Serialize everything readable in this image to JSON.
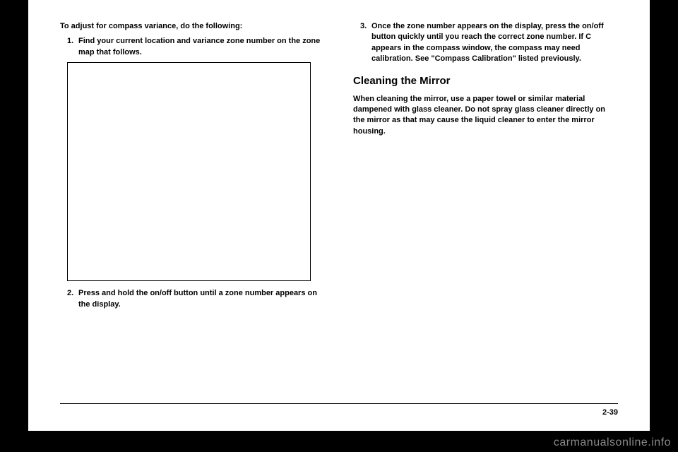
{
  "left": {
    "intro": "To adjust for compass variance, do the following:",
    "step1_num": "1.",
    "step1_text": "Find your current location and variance zone number on the zone map that follows.",
    "step2_num": "2.",
    "step2_text": "Press and hold the on/off button until a zone number appears on the display."
  },
  "right": {
    "step3_num": "3.",
    "step3_text": "Once the zone number appears on the display, press the on/off button quickly until you reach the correct zone number. If C appears in the compass window, the compass may need calibration. See \"Compass Calibration\" listed previously.",
    "heading": "Cleaning the Mirror",
    "para": "When cleaning the mirror, use a paper towel or similar material dampened with glass cleaner. Do not spray glass cleaner directly on the mirror as that may cause the liquid cleaner to enter the mirror housing."
  },
  "footer": {
    "pagenum": "2-39"
  },
  "watermark": "carmanualsonline.info"
}
